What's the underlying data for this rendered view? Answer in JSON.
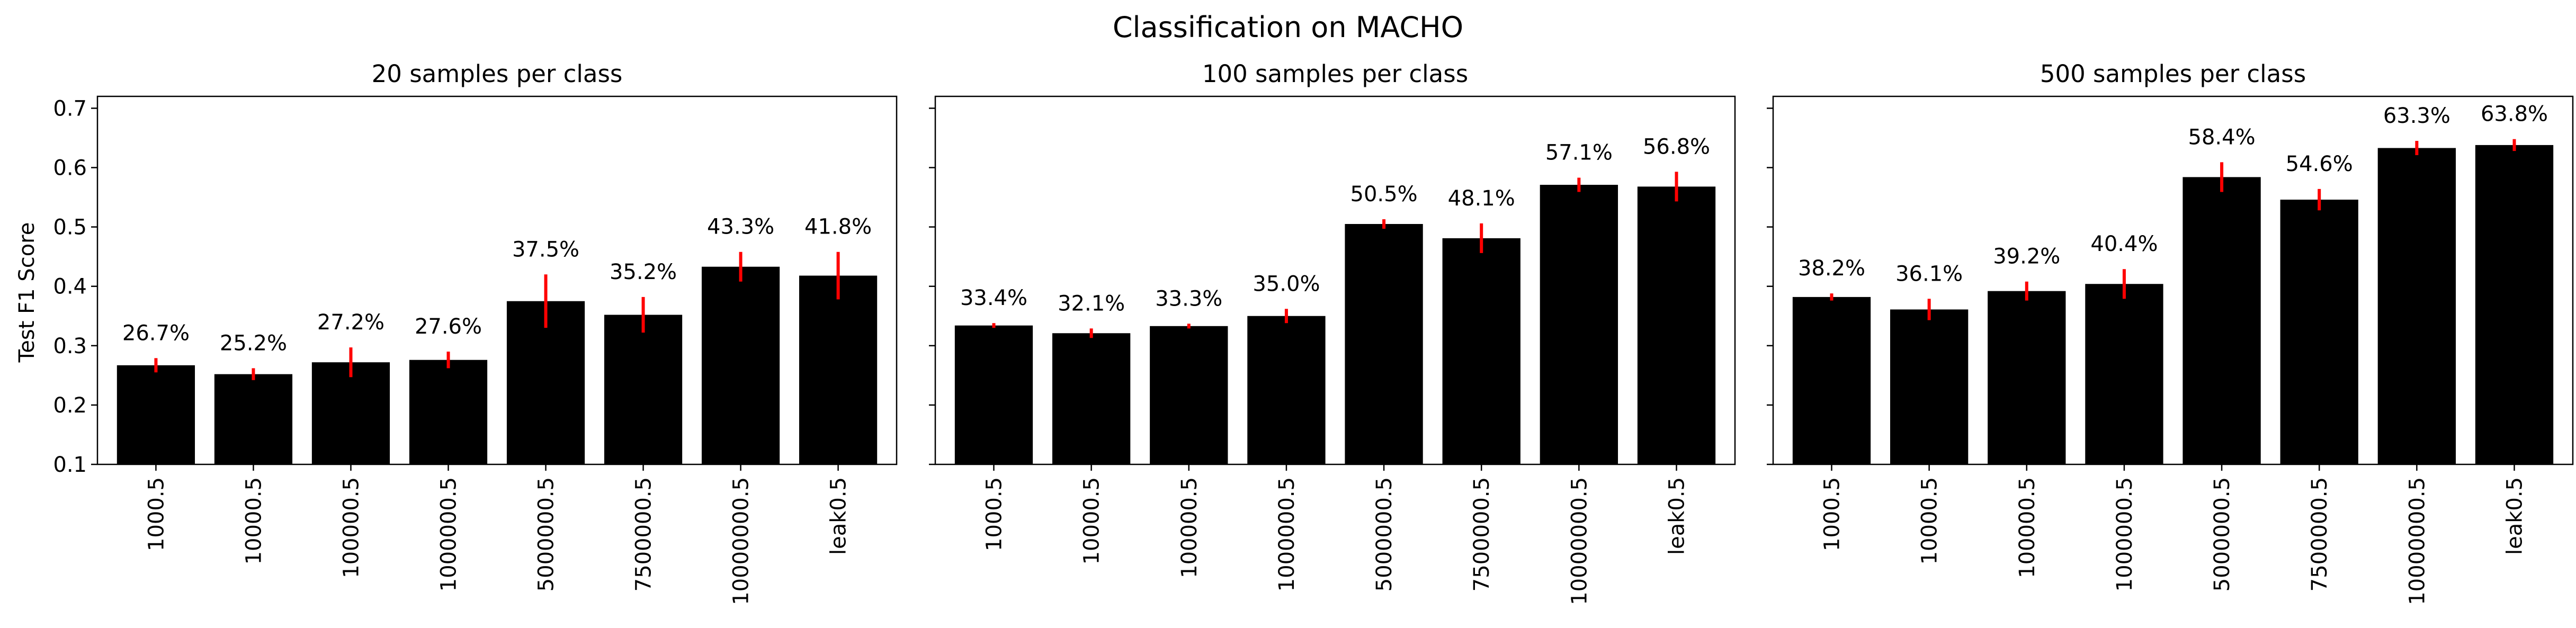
{
  "figure": {
    "title": "Classification on MACHO",
    "ylabel": "Test F1 Score"
  },
  "theme": {
    "bar_color": "#000000",
    "error_color": "#ff0000",
    "axis_color": "#000000"
  },
  "chart_data": [
    {
      "type": "bar",
      "title": "20 samples per class",
      "xlabel": "",
      "ylabel": "Test F1 Score",
      "ylim": [
        0.1,
        0.72
      ],
      "yticks": [
        "0.1",
        "0.2",
        "0.3",
        "0.4",
        "0.5",
        "0.6",
        "0.7"
      ],
      "categories": [
        "1000.5",
        "10000.5",
        "100000.5",
        "1000000.5",
        "5000000.5",
        "7500000.5",
        "10000000.5",
        "leak0.5"
      ],
      "values": [
        0.267,
        0.252,
        0.272,
        0.276,
        0.375,
        0.352,
        0.433,
        0.418
      ],
      "errors": [
        0.012,
        0.01,
        0.025,
        0.014,
        0.045,
        0.03,
        0.025,
        0.04
      ],
      "labels": [
        "26.7%",
        "25.2%",
        "27.2%",
        "27.6%",
        "37.5%",
        "35.2%",
        "43.3%",
        "41.8%"
      ],
      "grid": false
    },
    {
      "type": "bar",
      "title": "100 samples per class",
      "xlabel": "",
      "ylabel": "",
      "ylim": [
        0.1,
        0.72
      ],
      "yticks": [
        "0.1",
        "0.2",
        "0.3",
        "0.4",
        "0.5",
        "0.6",
        "0.7"
      ],
      "categories": [
        "1000.5",
        "10000.5",
        "100000.5",
        "1000000.5",
        "5000000.5",
        "7500000.5",
        "10000000.5",
        "leak0.5"
      ],
      "values": [
        0.334,
        0.321,
        0.333,
        0.35,
        0.505,
        0.481,
        0.571,
        0.568
      ],
      "errors": [
        0.004,
        0.008,
        0.004,
        0.012,
        0.008,
        0.025,
        0.012,
        0.025
      ],
      "labels": [
        "33.4%",
        "32.1%",
        "33.3%",
        "35.0%",
        "50.5%",
        "48.1%",
        "57.1%",
        "56.8%"
      ],
      "grid": false
    },
    {
      "type": "bar",
      "title": "500 samples per class",
      "xlabel": "",
      "ylabel": "",
      "ylim": [
        0.1,
        0.72
      ],
      "yticks": [
        "0.1",
        "0.2",
        "0.3",
        "0.4",
        "0.5",
        "0.6",
        "0.7"
      ],
      "categories": [
        "1000.5",
        "10000.5",
        "100000.5",
        "1000000.5",
        "5000000.5",
        "7500000.5",
        "10000000.5",
        "leak0.5"
      ],
      "values": [
        0.382,
        0.361,
        0.392,
        0.404,
        0.584,
        0.546,
        0.633,
        0.638
      ],
      "errors": [
        0.006,
        0.018,
        0.016,
        0.025,
        0.025,
        0.018,
        0.012,
        0.01
      ],
      "labels": [
        "38.2%",
        "36.1%",
        "39.2%",
        "40.4%",
        "58.4%",
        "54.6%",
        "63.3%",
        "63.8%"
      ],
      "grid": false
    }
  ]
}
